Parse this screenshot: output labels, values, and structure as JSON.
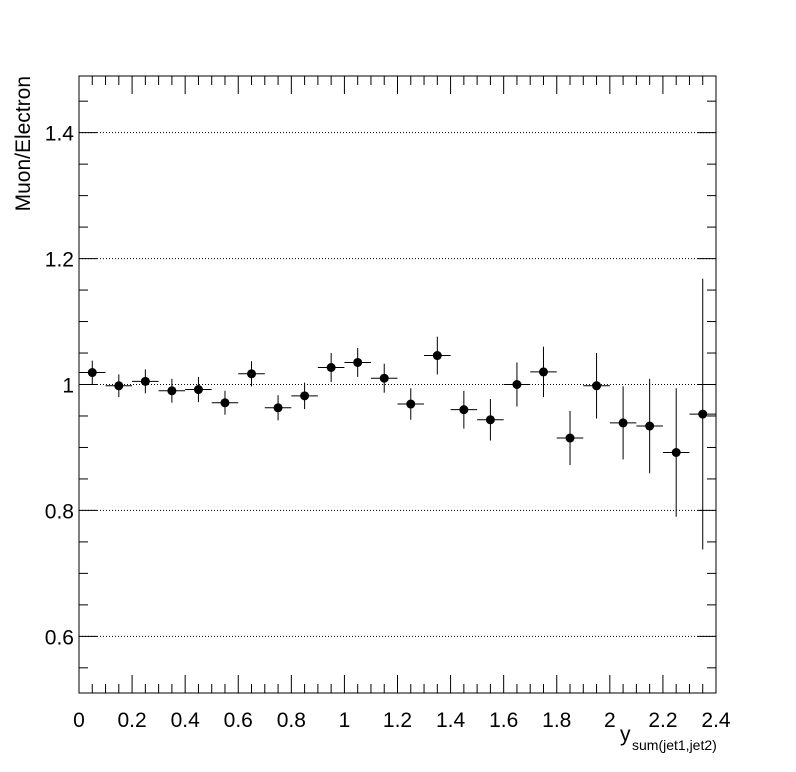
{
  "chart_data": {
    "type": "scatter",
    "title": "",
    "xlabel": "y",
    "xlabel_subscript": "sum(jet1,jet2)",
    "ylabel": "Muon/Electron",
    "xlim": [
      0,
      2.4
    ],
    "ylim": [
      0.51,
      1.49
    ],
    "grid": {
      "horizontal": true,
      "vertical": false,
      "y_lines": [
        0.6,
        0.8,
        1.0,
        1.2,
        1.4
      ]
    },
    "x_ticks": [
      {
        "value": 0,
        "label": "0"
      },
      {
        "value": 0.2,
        "label": "0.2"
      },
      {
        "value": 0.4,
        "label": "0.4"
      },
      {
        "value": 0.6,
        "label": "0.6"
      },
      {
        "value": 0.8,
        "label": "0.8"
      },
      {
        "value": 1.0,
        "label": "1"
      },
      {
        "value": 1.2,
        "label": "1.2"
      },
      {
        "value": 1.4,
        "label": "1.4"
      },
      {
        "value": 1.6,
        "label": "1.6"
      },
      {
        "value": 1.8,
        "label": "1.8"
      },
      {
        "value": 2.0,
        "label": "2"
      },
      {
        "value": 2.2,
        "label": "2.2"
      },
      {
        "value": 2.4,
        "label": "2.4"
      }
    ],
    "y_ticks": [
      {
        "value": 0.6,
        "label": "0.6"
      },
      {
        "value": 0.8,
        "label": "0.8"
      },
      {
        "value": 1.0,
        "label": "1"
      },
      {
        "value": 1.2,
        "label": "1.2"
      },
      {
        "value": 1.4,
        "label": "1.4"
      }
    ],
    "bin_half_width": 0.05,
    "points": [
      {
        "x": 0.05,
        "y": 1.019,
        "err": 0.019
      },
      {
        "x": 0.15,
        "y": 0.998,
        "err": 0.018
      },
      {
        "x": 0.25,
        "y": 1.005,
        "err": 0.019
      },
      {
        "x": 0.35,
        "y": 0.99,
        "err": 0.019
      },
      {
        "x": 0.45,
        "y": 0.992,
        "err": 0.02
      },
      {
        "x": 0.55,
        "y": 0.971,
        "err": 0.019
      },
      {
        "x": 0.65,
        "y": 1.017,
        "err": 0.02
      },
      {
        "x": 0.75,
        "y": 0.963,
        "err": 0.02
      },
      {
        "x": 0.85,
        "y": 0.982,
        "err": 0.021
      },
      {
        "x": 0.95,
        "y": 1.027,
        "err": 0.023
      },
      {
        "x": 1.05,
        "y": 1.035,
        "err": 0.023
      },
      {
        "x": 1.15,
        "y": 1.01,
        "err": 0.023
      },
      {
        "x": 1.25,
        "y": 0.969,
        "err": 0.025
      },
      {
        "x": 1.35,
        "y": 1.046,
        "err": 0.03
      },
      {
        "x": 1.45,
        "y": 0.96,
        "err": 0.03
      },
      {
        "x": 1.55,
        "y": 0.944,
        "err": 0.033
      },
      {
        "x": 1.65,
        "y": 1.0,
        "err": 0.035
      },
      {
        "x": 1.75,
        "y": 1.02,
        "err": 0.04
      },
      {
        "x": 1.85,
        "y": 0.915,
        "err": 0.043
      },
      {
        "x": 1.95,
        "y": 0.998,
        "err": 0.052
      },
      {
        "x": 2.05,
        "y": 0.939,
        "err": 0.058
      },
      {
        "x": 2.15,
        "y": 0.934,
        "err": 0.075
      },
      {
        "x": 2.25,
        "y": 0.892,
        "err": 0.102
      },
      {
        "x": 2.35,
        "y": 0.953,
        "err": 0.215
      }
    ]
  }
}
